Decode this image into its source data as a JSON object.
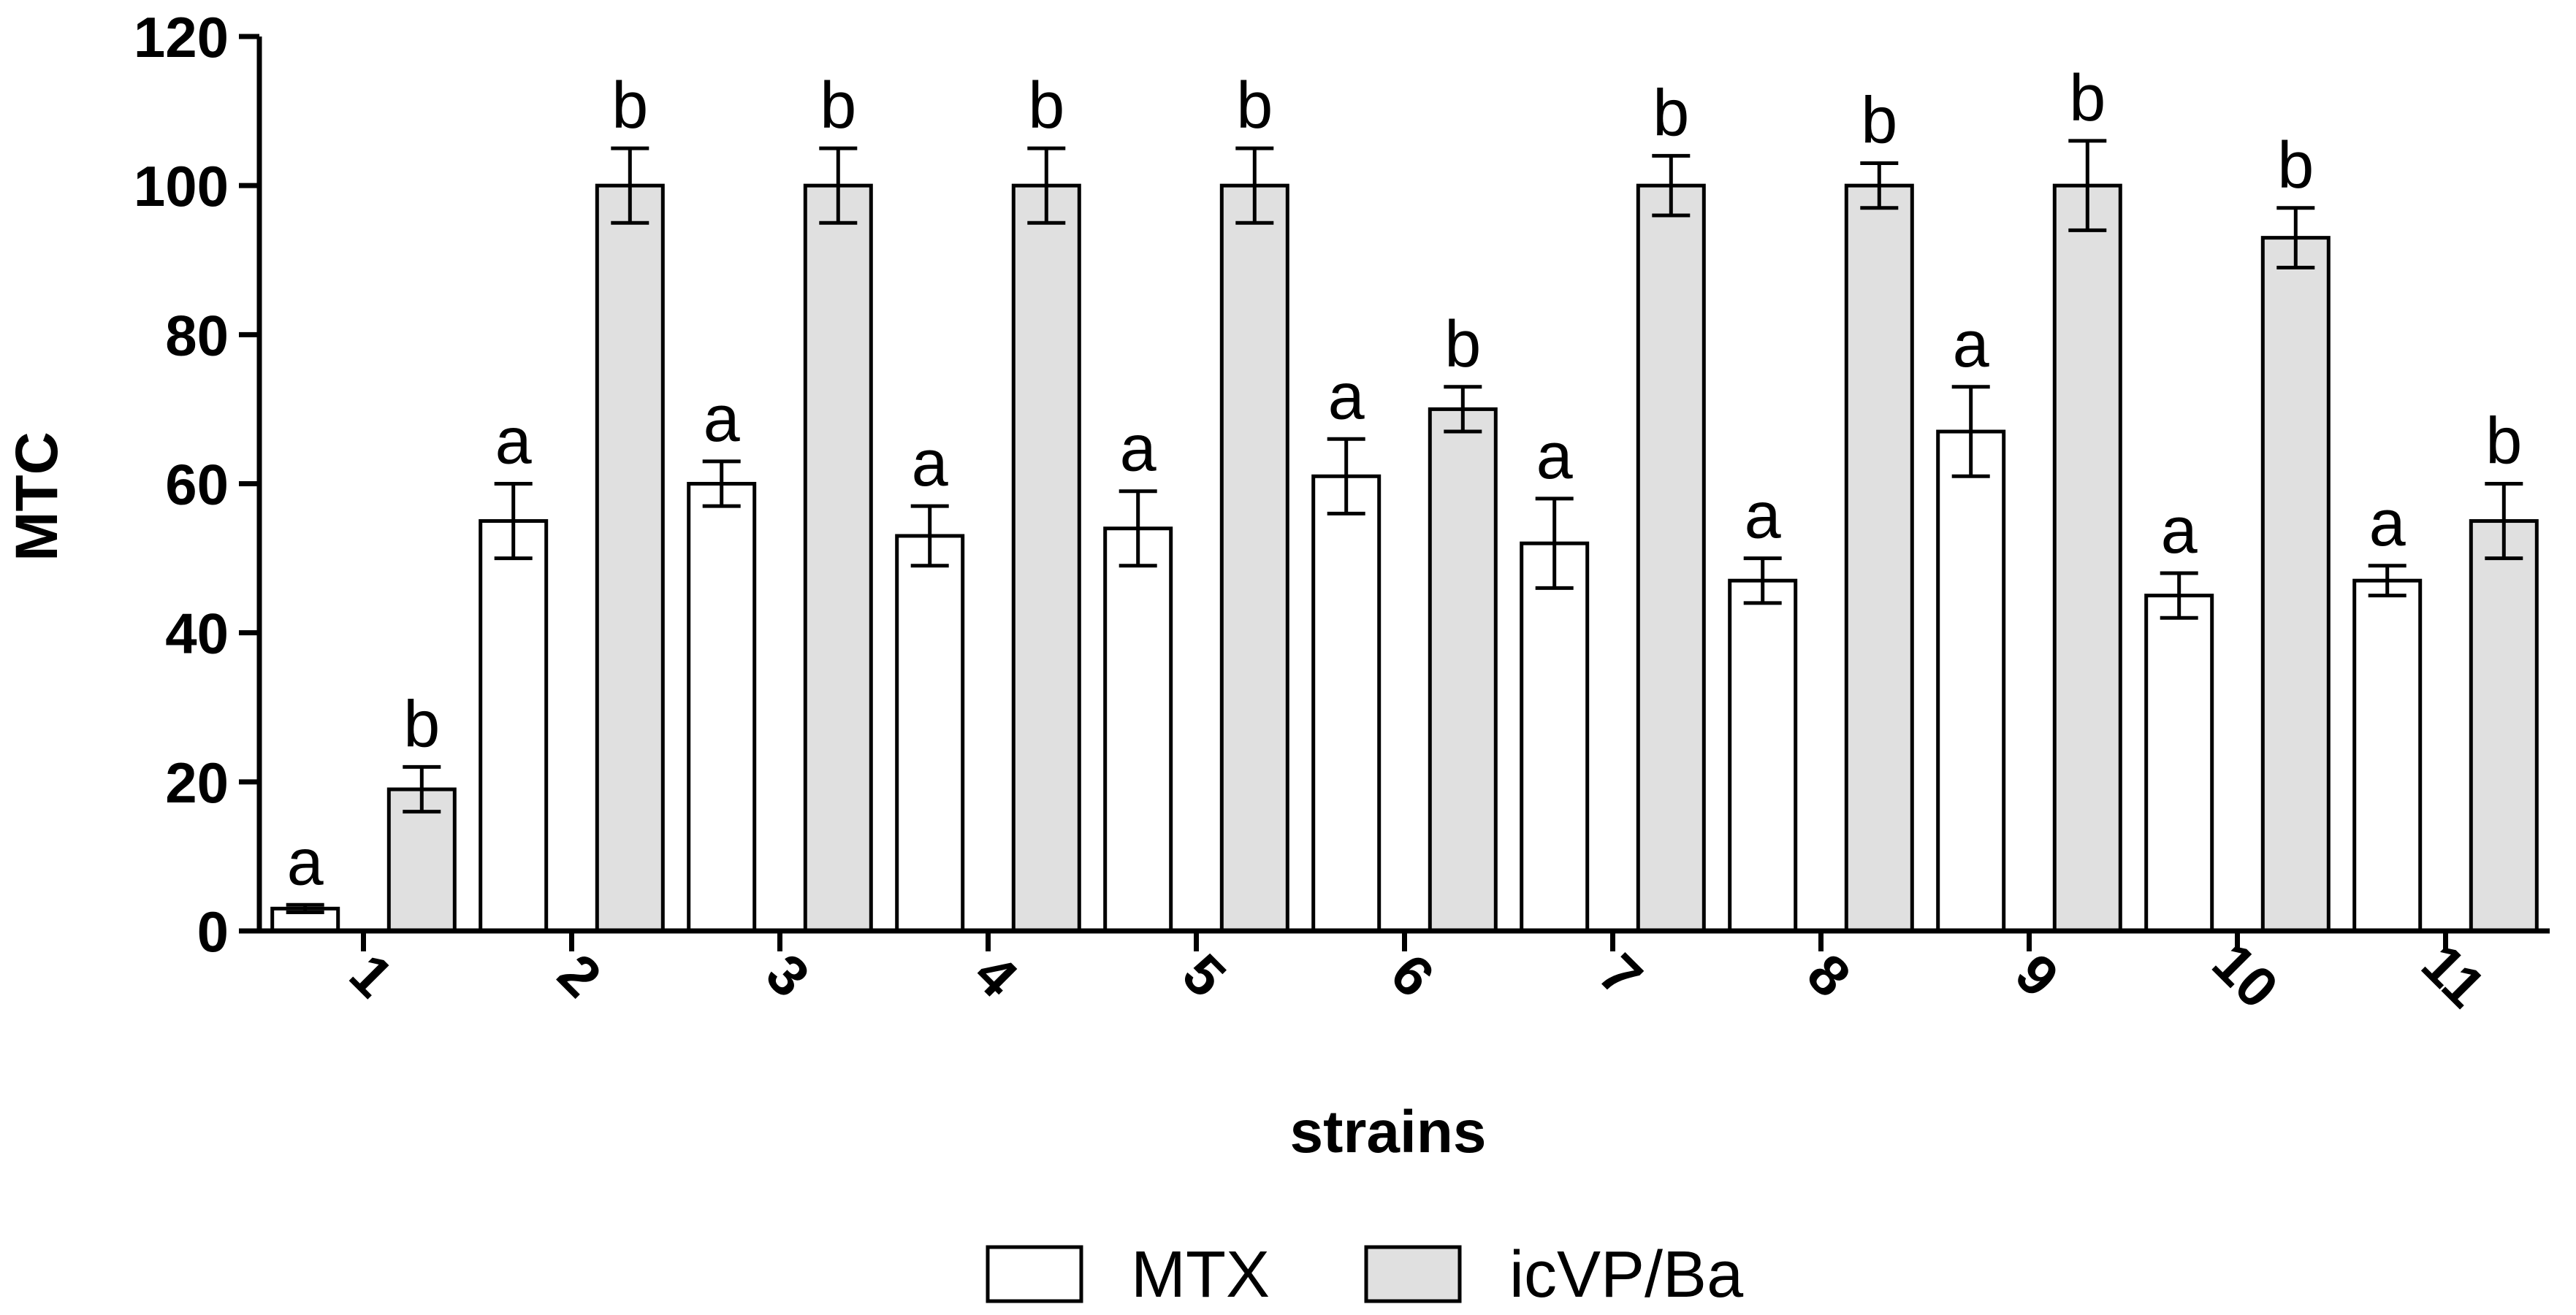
{
  "chart_data": {
    "type": "bar",
    "title": "",
    "xlabel": "strains",
    "ylabel": "MTC",
    "ylim": [
      0,
      120
    ],
    "yticks": [
      0,
      20,
      40,
      60,
      80,
      100,
      120
    ],
    "categories": [
      "1",
      "2",
      "3",
      "4",
      "5",
      "6",
      "7",
      "8",
      "9",
      "10",
      "11"
    ],
    "series": [
      {
        "name": "MTX",
        "color": "#ffffff",
        "values": [
          3,
          55,
          60,
          53,
          54,
          61,
          52,
          47,
          67,
          45,
          47
        ],
        "errors": [
          0.5,
          5,
          3,
          4,
          5,
          5,
          6,
          3,
          6,
          3,
          2
        ],
        "significance": [
          "a",
          "a",
          "a",
          "a",
          "a",
          "a",
          "a",
          "a",
          "a",
          "a",
          "a"
        ]
      },
      {
        "name": "icVP/Ba",
        "color": "#e0e0e0",
        "values": [
          19,
          100,
          100,
          100,
          100,
          70,
          100,
          100,
          100,
          93,
          55
        ],
        "errors": [
          3,
          5,
          5,
          5,
          5,
          3,
          4,
          3,
          6,
          4,
          5
        ],
        "significance": [
          "b",
          "b",
          "b",
          "b",
          "b",
          "b",
          "b",
          "b",
          "b",
          "b",
          "b"
        ]
      }
    ],
    "grid": false,
    "legend_position": "bottom",
    "x_tick_rotation": 45
  }
}
